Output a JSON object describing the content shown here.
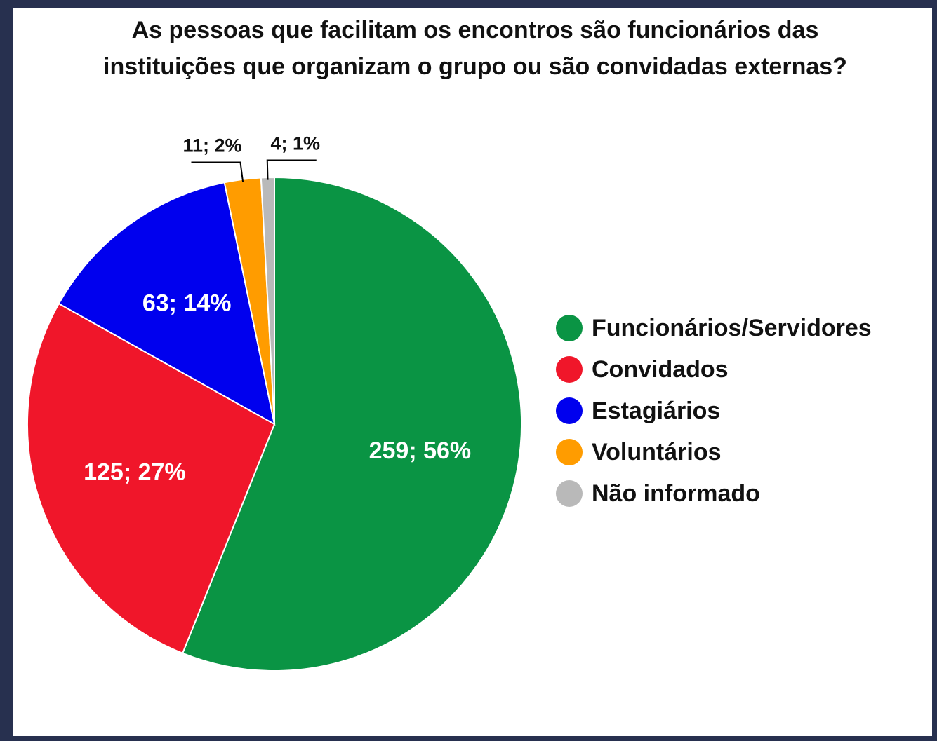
{
  "chart_data": {
    "type": "pie",
    "title": [
      "As pessoas que facilitam os encontros são funcionários das",
      "instituições que organizam o grupo ou são convidadas externas?"
    ],
    "categories": [
      "Funcionários/Servidores",
      "Convidados",
      "Estagiários",
      "Voluntários",
      "Não informado"
    ],
    "values": [
      259,
      125,
      63,
      11,
      4
    ],
    "value_labels": [
      "259; 56%",
      "125; 27%",
      "63; 14%",
      "11; 2%",
      "4; 1%"
    ],
    "colors": [
      "#0a9444",
      "#f0162a",
      "#0000ee",
      "#ff9c00",
      "#b9b9b9"
    ],
    "legend": "right"
  }
}
